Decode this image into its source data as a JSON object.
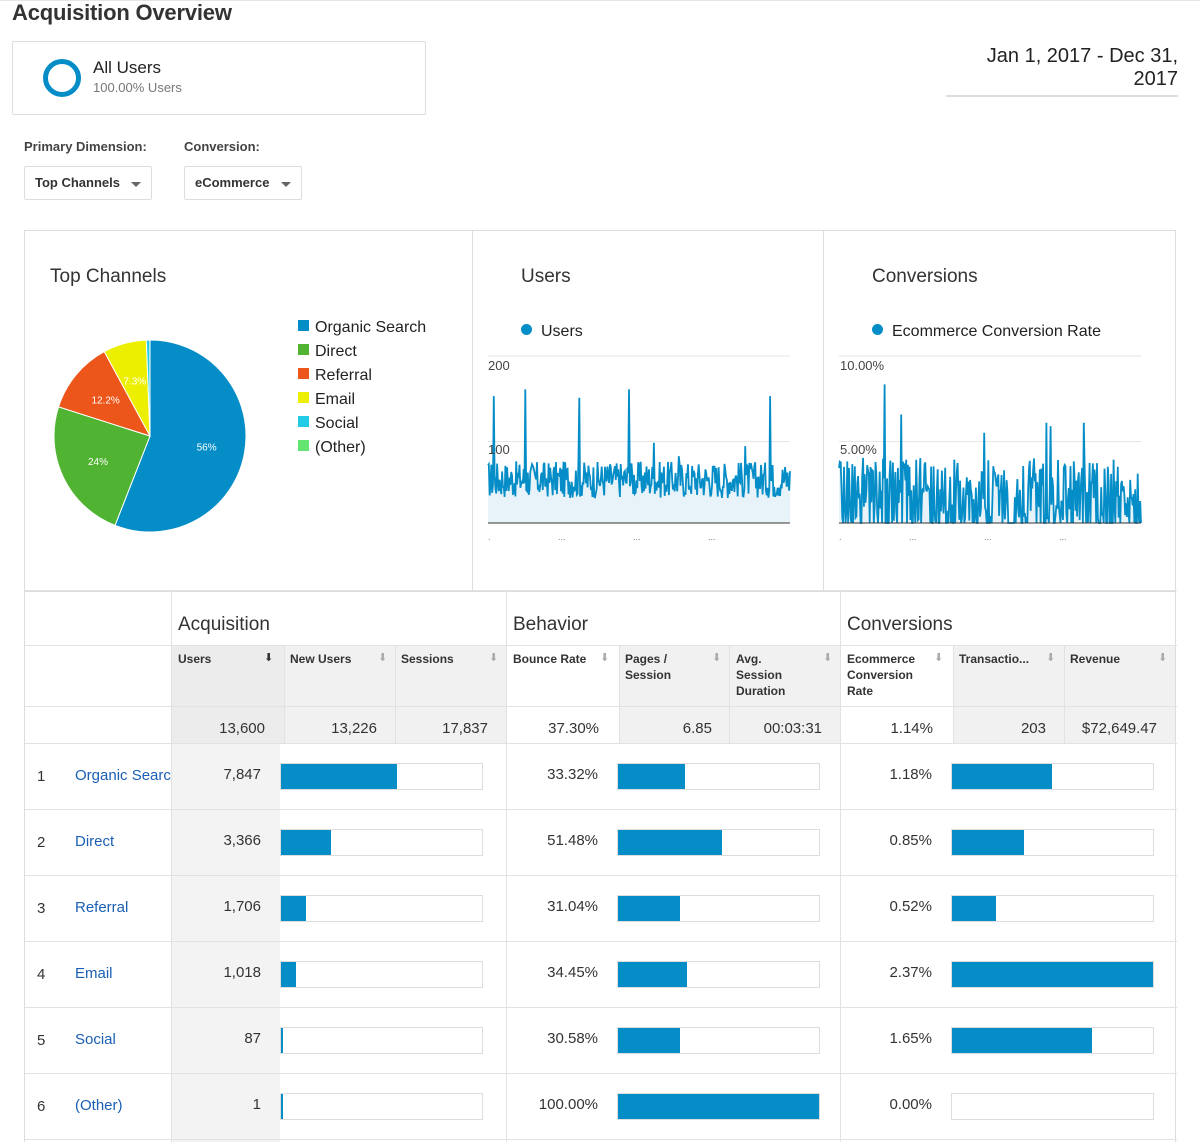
{
  "page": {
    "title": "Acquisition Overview",
    "date_range": "Jan 1, 2017 - Dec 31, 2017"
  },
  "segment": {
    "name": "All Users",
    "percent": "100.00% Users"
  },
  "controls": {
    "primary_dimension_label": "Primary Dimension:",
    "primary_dimension_value": "Top Channels",
    "conversion_label": "Conversion:",
    "conversion_value": "eCommerce"
  },
  "panels": {
    "top_channels_title": "Top Channels",
    "users_title": "Users",
    "conversions_title": "Conversions",
    "users_legend": "Users",
    "conversions_legend": "Ecommerce Conversion Rate"
  },
  "colors": {
    "accent": "#058dc7",
    "organic": "#058dc7",
    "direct": "#50b432",
    "referral": "#ed561b",
    "email": "#edef00",
    "social": "#24cbe5",
    "other": "#64e572",
    "link": "#1a5fb4"
  },
  "chart_data": [
    {
      "type": "pie",
      "title": "Top Channels",
      "categories": [
        "Organic Search",
        "Direct",
        "Referral",
        "Email",
        "Social",
        "(Other)"
      ],
      "values": [
        56,
        24,
        12.2,
        7.3,
        0.6,
        0.01
      ],
      "data_labels": [
        "56%",
        "24%",
        "12.2%",
        "7.3%",
        "",
        ""
      ],
      "legend_placement": "right"
    },
    {
      "type": "area",
      "title": "Users",
      "series": [
        {
          "name": "Users"
        }
      ],
      "y_tick_labels": [
        "200",
        "100"
      ],
      "ylim": [
        0,
        200
      ],
      "legend_placement": "top",
      "grid": true
    },
    {
      "type": "area",
      "title": "Conversions",
      "series": [
        {
          "name": "Ecommerce Conversion Rate"
        }
      ],
      "y_tick_labels": [
        "10.00%",
        "5.00%"
      ],
      "ylim": [
        0,
        10
      ],
      "legend_placement": "top",
      "grid": true
    }
  ],
  "table": {
    "groups": {
      "acquisition": "Acquisition",
      "behavior": "Behavior",
      "conversions": "Conversions"
    },
    "headers": {
      "users": "Users",
      "new_users": "New Users",
      "sessions": "Sessions",
      "bounce_rate": "Bounce Rate",
      "pages_session_1": "Pages /",
      "pages_session_2": "Session",
      "avg_1": "Avg.",
      "avg_2": "Session",
      "avg_3": "Duration",
      "ecr_1": "Ecommerce",
      "ecr_2": "Conversion",
      "ecr_3": "Rate",
      "transactions": "Transactio...",
      "revenue": "Revenue"
    },
    "totals": {
      "users": "13,600",
      "new_users": "13,226",
      "sessions": "17,837",
      "bounce_rate": "37.30%",
      "pages_session": "6.85",
      "avg_session": "00:03:31",
      "ecr": "1.14%",
      "transactions": "203",
      "revenue": "$72,649.47"
    },
    "rows": [
      {
        "num": "1",
        "channel": "Organic Search",
        "users": "7,847",
        "users_bar": 0.577,
        "bounce": "33.32%",
        "bounce_bar": 0.333,
        "ecr": "1.18%",
        "ecr_bar": 0.498
      },
      {
        "num": "2",
        "channel": "Direct",
        "users": "3,366",
        "users_bar": 0.248,
        "bounce": "51.48%",
        "bounce_bar": 0.515,
        "ecr": "0.85%",
        "ecr_bar": 0.359
      },
      {
        "num": "3",
        "channel": "Referral",
        "users": "1,706",
        "users_bar": 0.125,
        "bounce": "31.04%",
        "bounce_bar": 0.31,
        "ecr": "0.52%",
        "ecr_bar": 0.219
      },
      {
        "num": "4",
        "channel": "Email",
        "users": "1,018",
        "users_bar": 0.075,
        "bounce": "34.45%",
        "bounce_bar": 0.345,
        "ecr": "2.37%",
        "ecr_bar": 1.0
      },
      {
        "num": "5",
        "channel": "Social",
        "users": "87",
        "users_bar": 0.006,
        "bounce": "30.58%",
        "bounce_bar": 0.306,
        "ecr": "1.65%",
        "ecr_bar": 0.696
      },
      {
        "num": "6",
        "channel": "(Other)",
        "users": "1",
        "users_bar": 0.001,
        "bounce": "100.00%",
        "bounce_bar": 1.0,
        "ecr": "0.00%",
        "ecr_bar": 0.0
      }
    ]
  }
}
